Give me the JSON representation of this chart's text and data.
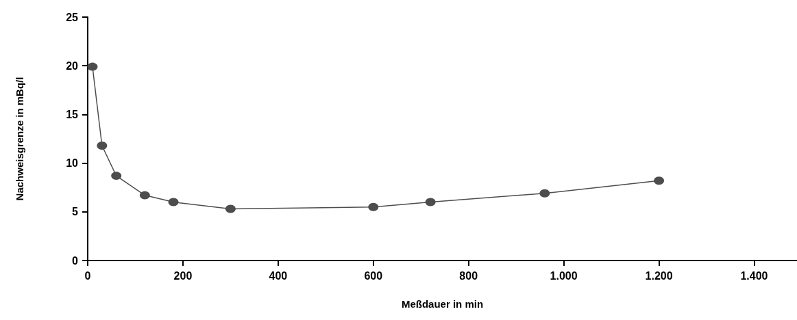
{
  "chart_data": {
    "type": "line",
    "xlabel": "Meßdauer in min",
    "ylabel": "Nachweisgrenze in mBq/l",
    "x": [
      10,
      30,
      60,
      120,
      180,
      300,
      600,
      720,
      960,
      1200
    ],
    "series": [
      {
        "color": "#4d4d4d",
        "values": [
          19.9,
          11.8,
          8.7,
          6.7,
          6.0,
          5.3,
          5.5,
          6.0,
          6.9,
          8.2
        ]
      }
    ],
    "xlim": [
      0,
      1490
    ],
    "xticks": [
      0,
      200,
      400,
      600,
      800,
      {
        "value": 1000,
        "label": "1.000"
      },
      {
        "value": 1200,
        "label": "1.200"
      },
      {
        "value": 1400,
        "label": "1.400"
      }
    ],
    "ylim": [
      0,
      25
    ],
    "yticks": [
      0,
      5,
      10,
      15,
      20,
      25
    ],
    "grid": false,
    "marker": "circle",
    "line_style": "solid"
  }
}
